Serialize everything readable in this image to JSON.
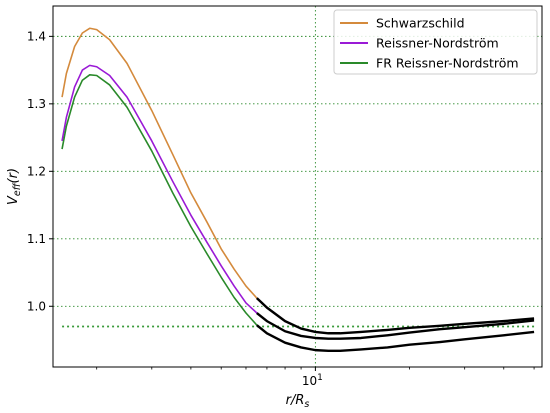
{
  "chart_data": {
    "type": "line",
    "xscale": "log",
    "xlabel": "r/R_s",
    "ylabel": "V_eff(r)",
    "xlim": [
      1.45,
      53
    ],
    "ylim": [
      0.91,
      1.445
    ],
    "xticks": [
      {
        "value": 10,
        "label": "10^1"
      }
    ],
    "yticks": [
      1.0,
      1.1,
      1.2,
      1.3,
      1.4
    ],
    "grid": true,
    "legend_position": "top-right",
    "hline": {
      "y": 0.97,
      "x_range": [
        1.55,
        50
      ],
      "color": "#3a9a3a",
      "style": "dotted"
    },
    "series": [
      {
        "name": "Schwarzschild",
        "color": "#d48a3c",
        "transition_x": 6.4,
        "tail_color": "#000000",
        "points": [
          [
            1.55,
            1.31
          ],
          [
            1.6,
            1.345
          ],
          [
            1.7,
            1.385
          ],
          [
            1.8,
            1.405
          ],
          [
            1.9,
            1.412
          ],
          [
            2.0,
            1.41
          ],
          [
            2.2,
            1.395
          ],
          [
            2.5,
            1.36
          ],
          [
            3.0,
            1.29
          ],
          [
            3.5,
            1.225
          ],
          [
            4.0,
            1.168
          ],
          [
            4.5,
            1.125
          ],
          [
            5.0,
            1.085
          ],
          [
            5.5,
            1.055
          ],
          [
            6.0,
            1.03
          ],
          [
            6.5,
            1.012
          ],
          [
            7.0,
            0.998
          ],
          [
            8.0,
            0.978
          ],
          [
            9.0,
            0.967
          ],
          [
            10.0,
            0.962
          ],
          [
            11.0,
            0.96
          ],
          [
            12.0,
            0.96
          ],
          [
            14.0,
            0.962
          ],
          [
            17.0,
            0.965
          ],
          [
            20.0,
            0.968
          ],
          [
            25.0,
            0.971
          ],
          [
            30.0,
            0.974
          ],
          [
            40.0,
            0.978
          ],
          [
            50.0,
            0.982
          ]
        ]
      },
      {
        "name": "Reissner-Nordström",
        "color": "#9a1ad6",
        "transition_x": 6.4,
        "tail_color": "#000000",
        "points": [
          [
            1.55,
            1.245
          ],
          [
            1.6,
            1.28
          ],
          [
            1.7,
            1.325
          ],
          [
            1.8,
            1.35
          ],
          [
            1.9,
            1.357
          ],
          [
            2.0,
            1.355
          ],
          [
            2.2,
            1.342
          ],
          [
            2.5,
            1.31
          ],
          [
            3.0,
            1.245
          ],
          [
            3.5,
            1.185
          ],
          [
            4.0,
            1.135
          ],
          [
            4.5,
            1.095
          ],
          [
            5.0,
            1.06
          ],
          [
            5.5,
            1.03
          ],
          [
            6.0,
            1.005
          ],
          [
            6.5,
            0.99
          ],
          [
            7.0,
            0.978
          ],
          [
            8.0,
            0.963
          ],
          [
            9.0,
            0.956
          ],
          [
            10.0,
            0.953
          ],
          [
            11.0,
            0.952
          ],
          [
            12.0,
            0.952
          ],
          [
            14.0,
            0.953
          ],
          [
            17.0,
            0.957
          ],
          [
            20.0,
            0.961
          ],
          [
            25.0,
            0.966
          ],
          [
            30.0,
            0.969
          ],
          [
            40.0,
            0.974
          ],
          [
            50.0,
            0.979
          ]
        ]
      },
      {
        "name": "FR Reissner-Nordström",
        "color": "#2a8a2a",
        "transition_x": 6.4,
        "tail_color": "#000000",
        "points": [
          [
            1.55,
            1.233
          ],
          [
            1.6,
            1.267
          ],
          [
            1.7,
            1.31
          ],
          [
            1.8,
            1.335
          ],
          [
            1.9,
            1.343
          ],
          [
            2.0,
            1.342
          ],
          [
            2.2,
            1.328
          ],
          [
            2.5,
            1.295
          ],
          [
            3.0,
            1.23
          ],
          [
            3.5,
            1.168
          ],
          [
            4.0,
            1.118
          ],
          [
            4.5,
            1.078
          ],
          [
            5.0,
            1.043
          ],
          [
            5.5,
            1.013
          ],
          [
            6.0,
            0.99
          ],
          [
            6.5,
            0.972
          ],
          [
            7.0,
            0.96
          ],
          [
            8.0,
            0.946
          ],
          [
            9.0,
            0.939
          ],
          [
            10.0,
            0.935
          ],
          [
            11.0,
            0.934
          ],
          [
            12.0,
            0.934
          ],
          [
            14.0,
            0.936
          ],
          [
            17.0,
            0.939
          ],
          [
            20.0,
            0.943
          ],
          [
            25.0,
            0.947
          ],
          [
            30.0,
            0.951
          ],
          [
            40.0,
            0.957
          ],
          [
            50.0,
            0.962
          ]
        ]
      }
    ]
  }
}
